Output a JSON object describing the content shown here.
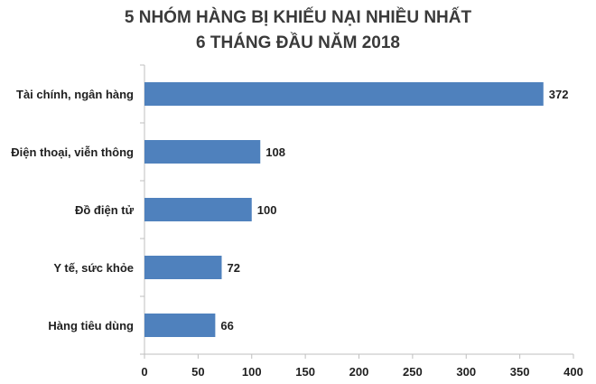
{
  "chart_data": {
    "type": "bar",
    "orientation": "horizontal",
    "title": [
      "5 NHÓM HÀNG BỊ KHIẾU NẠI NHIỀU NHẤT",
      "6 THÁNG ĐẦU NĂM 2018"
    ],
    "xlabel": "",
    "ylabel": "",
    "categories": [
      "Tài chính, ngân hàng",
      "Điện thoại, viễn thông",
      "Đồ điện tử",
      "Y tế, sức khỏe",
      "Hàng tiêu dùng"
    ],
    "values": [
      372,
      108,
      100,
      72,
      66
    ],
    "xlim": [
      0,
      400
    ],
    "xticks": [
      "0",
      "50",
      "100",
      "150",
      "200",
      "250",
      "300",
      "350",
      "400"
    ],
    "grid": false,
    "legend": "none",
    "colors": {
      "bar": "#4f81bd",
      "text": "#1f1f1f",
      "title": "#3a3a3a",
      "axis": "#bfbfbf"
    }
  }
}
